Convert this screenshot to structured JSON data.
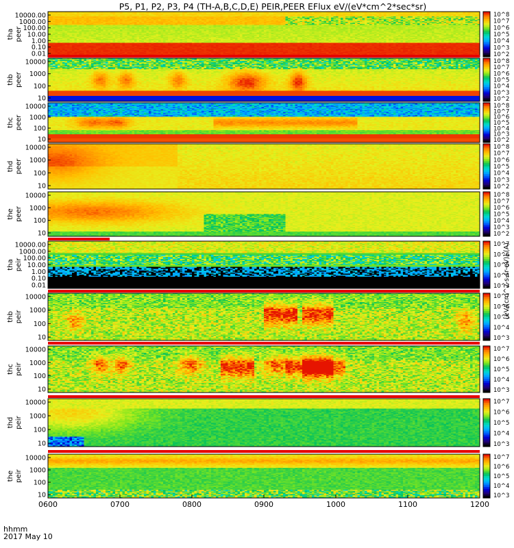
{
  "title": "P5, P1, P2, P3, P4 (TH-A,B,C,D,E) PEIR,PEER EFlux eV/(eV*cm^2*sec*sr)",
  "time_axis": {
    "ticks": [
      "0600",
      "0700",
      "0800",
      "0900",
      "1000",
      "1100",
      "1200"
    ],
    "label_top": "hhmm",
    "label_bottom": "2017 May 10"
  },
  "colorbar_label": "[eV/(cm^2-s-sr-eV)] (A)",
  "colormap": [
    "#000000",
    "#20007a",
    "#0000d8",
    "#0066ff",
    "#00b4ff",
    "#00dcc8",
    "#00c060",
    "#7fe61e",
    "#e6f01e",
    "#ffc000",
    "#ff8000",
    "#e61400",
    "#ffffff"
  ],
  "chart_data": [
    {
      "type": "heatmap",
      "panel": "tha peer",
      "ylabel_line1": "tha",
      "ylabel_line2": "peer",
      "y_ticks": [
        "10000.00",
        "1000.00",
        "100.00",
        "10.00",
        "1.00",
        "0.10",
        "0.01"
      ],
      "colorbar_ticks": [
        "10^8",
        "10^7",
        "10^6",
        "10^5",
        "10^4",
        "10^3",
        "10^2"
      ],
      "x_range": [
        "0600",
        "1200"
      ],
      "y_range_eV": [
        0.01,
        30000
      ],
      "y_scale": "log",
      "z_range": [
        100,
        100000000.0
      ],
      "z_scale": "log"
    },
    {
      "type": "heatmap",
      "panel": "thb peer",
      "ylabel_line1": "thb",
      "ylabel_line2": "peer",
      "y_ticks": [
        "10000",
        "1000",
        "100",
        "10"
      ],
      "colorbar_ticks": [
        "10^8",
        "10^7",
        "10^6",
        "10^5",
        "10^4",
        "10^3",
        "10^2"
      ],
      "x_range": [
        "0600",
        "1200"
      ],
      "y_range_eV": [
        7,
        30000
      ],
      "y_scale": "log",
      "z_range": [
        100,
        100000000.0
      ],
      "z_scale": "log"
    },
    {
      "type": "heatmap",
      "panel": "thc peer",
      "ylabel_line1": "thc",
      "ylabel_line2": "peer",
      "y_ticks": [
        "10000",
        "1000",
        "100",
        "10"
      ],
      "colorbar_ticks": [
        "10^8",
        "10^7",
        "10^6",
        "10^5",
        "10^4",
        "10^3",
        "10^2"
      ],
      "x_range": [
        "0600",
        "1200"
      ],
      "y_range_eV": [
        7,
        30000
      ],
      "y_scale": "log",
      "z_range": [
        100,
        100000000.0
      ],
      "z_scale": "log"
    },
    {
      "type": "heatmap",
      "panel": "thd peer",
      "ylabel_line1": "thd",
      "ylabel_line2": "peer",
      "y_ticks": [
        "10000",
        "1000",
        "100",
        "10"
      ],
      "colorbar_ticks": [
        "10^8",
        "10^7",
        "10^6",
        "10^5",
        "10^4",
        "10^3",
        "10^2"
      ],
      "x_range": [
        "0600",
        "1200"
      ],
      "y_range_eV": [
        7,
        30000
      ],
      "y_scale": "log",
      "z_range": [
        100,
        100000000.0
      ],
      "z_scale": "log"
    },
    {
      "type": "heatmap",
      "panel": "the peer",
      "ylabel_line1": "the",
      "ylabel_line2": "peer",
      "y_ticks": [
        "10000",
        "1000",
        "100",
        "10"
      ],
      "colorbar_ticks": [
        "10^8",
        "10^7",
        "10^6",
        "10^5",
        "10^4",
        "10^3",
        "10^2"
      ],
      "x_range": [
        "0600",
        "1200"
      ],
      "y_range_eV": [
        7,
        30000
      ],
      "y_scale": "log",
      "z_range": [
        100,
        100000000.0
      ],
      "z_scale": "log"
    },
    {
      "type": "heatmap",
      "panel": "tha peir",
      "ylabel_line1": "tha",
      "ylabel_line2": "peir",
      "y_ticks": [
        "10000.00",
        "1000.00",
        "100.00",
        "10.00",
        "1.00",
        "0.10",
        "0.01"
      ],
      "colorbar_ticks": [
        "10^7",
        "10^6",
        "10^5",
        "10^4",
        "10^3"
      ],
      "x_range": [
        "0600",
        "1200"
      ],
      "y_range_eV": [
        0.01,
        30000
      ],
      "y_scale": "log",
      "z_range": [
        1000,
        10000000.0
      ],
      "z_scale": "log"
    },
    {
      "type": "heatmap",
      "panel": "thb peir",
      "ylabel_line1": "thb",
      "ylabel_line2": "peir",
      "y_ticks": [
        "10000",
        "1000",
        "100",
        "10"
      ],
      "colorbar_ticks": [
        "10^7",
        "10^6",
        "10^5",
        "10^4",
        "10^3"
      ],
      "x_range": [
        "0600",
        "1200"
      ],
      "y_range_eV": [
        5,
        30000
      ],
      "y_scale": "log",
      "z_range": [
        1000,
        10000000.0
      ],
      "z_scale": "log"
    },
    {
      "type": "heatmap",
      "panel": "thc peir",
      "ylabel_line1": "thc",
      "ylabel_line2": "peir",
      "y_ticks": [
        "10000",
        "1000",
        "100",
        "10"
      ],
      "colorbar_ticks": [
        "10^7",
        "10^6",
        "10^5",
        "10^4",
        "10^3"
      ],
      "x_range": [
        "0600",
        "1200"
      ],
      "y_range_eV": [
        5,
        30000
      ],
      "y_scale": "log",
      "z_range": [
        1000,
        10000000.0
      ],
      "z_scale": "log"
    },
    {
      "type": "heatmap",
      "panel": "thd peir",
      "ylabel_line1": "thd",
      "ylabel_line2": "peir",
      "y_ticks": [
        "10000",
        "1000",
        "100",
        "10"
      ],
      "colorbar_ticks": [
        "10^7",
        "10^6",
        "10^5",
        "10^4",
        "10^3"
      ],
      "x_range": [
        "0600",
        "1200"
      ],
      "y_range_eV": [
        5,
        30000
      ],
      "y_scale": "log",
      "z_range": [
        1000,
        10000000.0
      ],
      "z_scale": "log"
    },
    {
      "type": "heatmap",
      "panel": "the peir",
      "ylabel_line1": "the",
      "ylabel_line2": "peir",
      "y_ticks": [
        "10000",
        "1000",
        "100",
        "10"
      ],
      "colorbar_ticks": [
        "10^7",
        "10^6",
        "10^5",
        "10^4",
        "10^3"
      ],
      "x_range": [
        "0600",
        "1200"
      ],
      "y_range_eV": [
        5,
        30000
      ],
      "y_scale": "log",
      "z_range": [
        1000,
        10000000.0
      ],
      "z_scale": "log"
    }
  ]
}
